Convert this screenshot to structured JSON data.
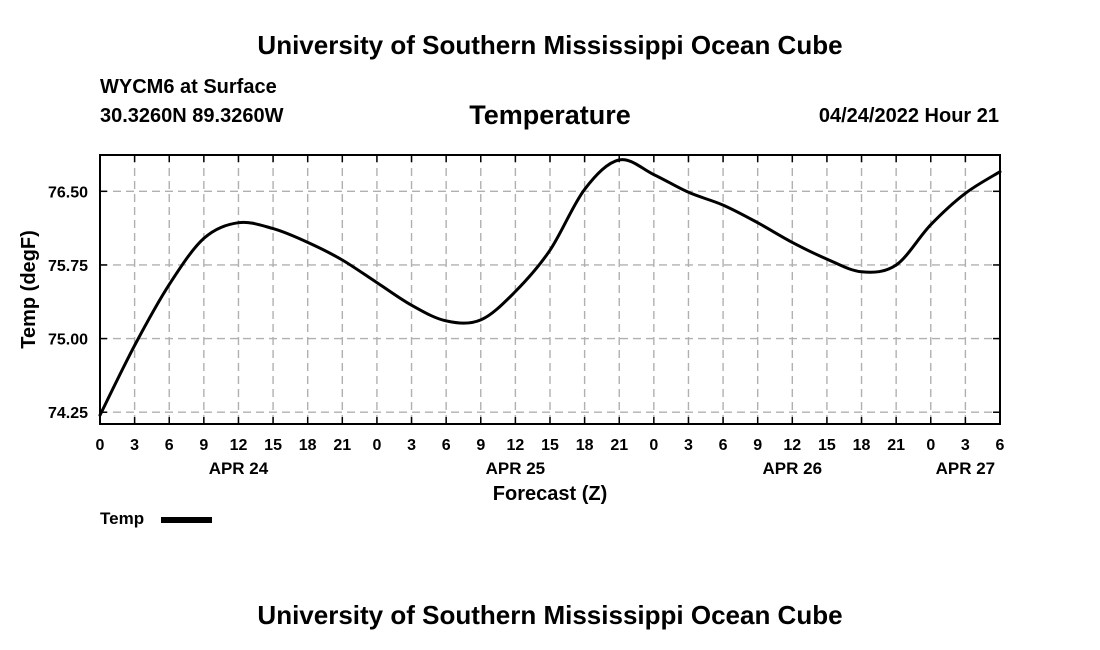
{
  "header": {
    "title": "University of Southern Mississippi Ocean Cube",
    "station": "WYCM6 at Surface",
    "coords": "30.3260N  89.3260W",
    "chart_title": "Temperature",
    "datetime": "04/24/2022 Hour 21"
  },
  "footer": {
    "title": "University of Southern Mississippi Ocean Cube"
  },
  "legend": {
    "label": "Temp"
  },
  "chart_data": {
    "type": "line",
    "title": "Temperature",
    "xlabel": "Forecast (Z)",
    "ylabel": "Temp (degF)",
    "x_unit": "forecast hours from 00Z APR 24",
    "xlim": [
      0,
      78
    ],
    "ylim": [
      74.13,
      76.87
    ],
    "grid": true,
    "legend_position": "bottom-left",
    "yticks": [
      74.25,
      75.0,
      75.75,
      76.5
    ],
    "ytick_labels": [
      "74.25",
      "75.00",
      "75.75",
      "76.50"
    ],
    "xticks": [
      0,
      3,
      6,
      9,
      12,
      15,
      18,
      21,
      24,
      27,
      30,
      33,
      36,
      39,
      42,
      45,
      48,
      51,
      54,
      57,
      60,
      63,
      66,
      69,
      72,
      75,
      78
    ],
    "xtick_labels": [
      "0",
      "3",
      "6",
      "9",
      "12",
      "15",
      "18",
      "21",
      "0",
      "3",
      "6",
      "9",
      "12",
      "15",
      "18",
      "21",
      "0",
      "3",
      "6",
      "9",
      "12",
      "15",
      "18",
      "21",
      "0",
      "3",
      "6"
    ],
    "date_labels": [
      {
        "text": "APR 24",
        "x": 12
      },
      {
        "text": "APR 25",
        "x": 36
      },
      {
        "text": "APR 26",
        "x": 60
      },
      {
        "text": "APR 27",
        "x": 75
      }
    ],
    "series": [
      {
        "name": "Temp",
        "color": "#000000",
        "x": [
          0,
          3,
          6,
          9,
          12,
          15,
          18,
          21,
          24,
          27,
          30,
          33,
          36,
          39,
          42,
          45,
          48,
          51,
          54,
          57,
          60,
          63,
          66,
          69,
          72,
          75,
          78
        ],
        "values": [
          74.22,
          74.93,
          75.55,
          76.02,
          76.18,
          76.12,
          75.98,
          75.8,
          75.57,
          75.34,
          75.18,
          75.19,
          75.48,
          75.9,
          76.52,
          76.82,
          76.67,
          76.49,
          76.36,
          76.18,
          75.98,
          75.81,
          75.68,
          75.75,
          76.16,
          76.48,
          76.7
        ]
      }
    ]
  }
}
